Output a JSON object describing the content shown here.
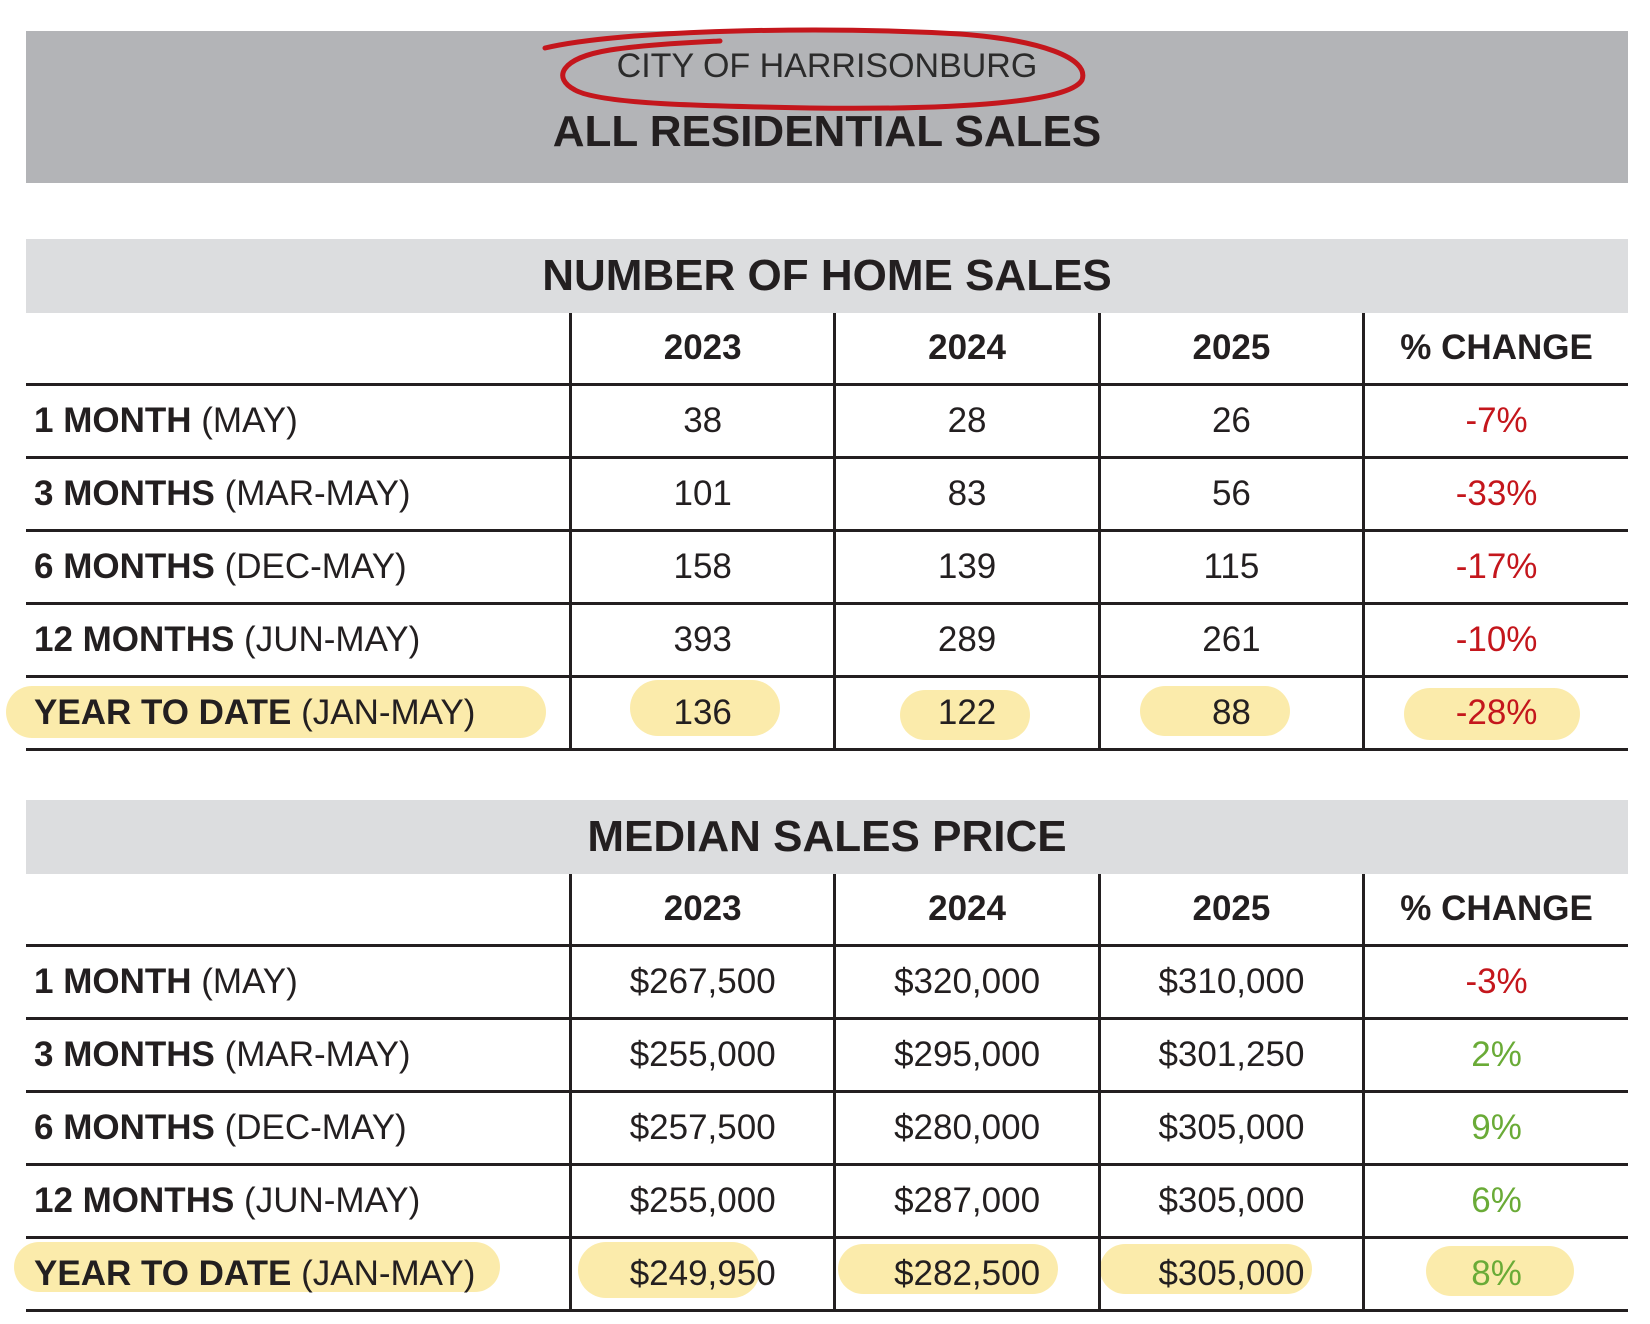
{
  "header": {
    "city": "CITY OF HARRISONBURG",
    "title": "ALL RESIDENTIAL SALES"
  },
  "columns": [
    "2023",
    "2024",
    "2025",
    "% CHANGE"
  ],
  "home_sales": {
    "title": "NUMBER OF HOME SALES",
    "rows": [
      {
        "label": "1 MONTH",
        "period": "(MAY)",
        "v2023": "38",
        "v2024": "28",
        "v2025": "26",
        "change": "-7%"
      },
      {
        "label": "3 MONTHS",
        "period": "(MAR-MAY)",
        "v2023": "101",
        "v2024": "83",
        "v2025": "56",
        "change": "-33%"
      },
      {
        "label": "6 MONTHS",
        "period": "(DEC-MAY)",
        "v2023": "158",
        "v2024": "139",
        "v2025": "115",
        "change": "-17%"
      },
      {
        "label": "12 MONTHS",
        "period": "(JUN-MAY)",
        "v2023": "393",
        "v2024": "289",
        "v2025": "261",
        "change": "-10%"
      },
      {
        "label": "YEAR TO DATE",
        "period": "(JAN-MAY)",
        "v2023": "136",
        "v2024": "122",
        "v2025": "88",
        "change": "-28%"
      }
    ]
  },
  "median_price": {
    "title": "MEDIAN SALES PRICE",
    "rows": [
      {
        "label": "1 MONTH",
        "period": "(MAY)",
        "v2023": "$267,500",
        "v2024": "$320,000",
        "v2025": "$310,000",
        "change": "-3%"
      },
      {
        "label": "3 MONTHS",
        "period": "(MAR-MAY)",
        "v2023": "$255,000",
        "v2024": "$295,000",
        "v2025": "$301,250",
        "change": "2%"
      },
      {
        "label": "6 MONTHS",
        "period": "(DEC-MAY)",
        "v2023": "$257,500",
        "v2024": "$280,000",
        "v2025": "$305,000",
        "change": "9%"
      },
      {
        "label": "12 MONTHS",
        "period": "(JUN-MAY)",
        "v2023": "$255,000",
        "v2024": "$287,000",
        "v2025": "$305,000",
        "change": "6%"
      },
      {
        "label": "YEAR TO DATE",
        "period": "(JAN-MAY)",
        "v2023": "$249,950",
        "v2024": "$282,500",
        "v2025": "$305,000",
        "change": "8%"
      }
    ]
  },
  "colors": {
    "negative": "#c4161c",
    "positive": "#6aab37",
    "highlight": "#f9e48f",
    "annotation_circle": "#c4161c"
  }
}
